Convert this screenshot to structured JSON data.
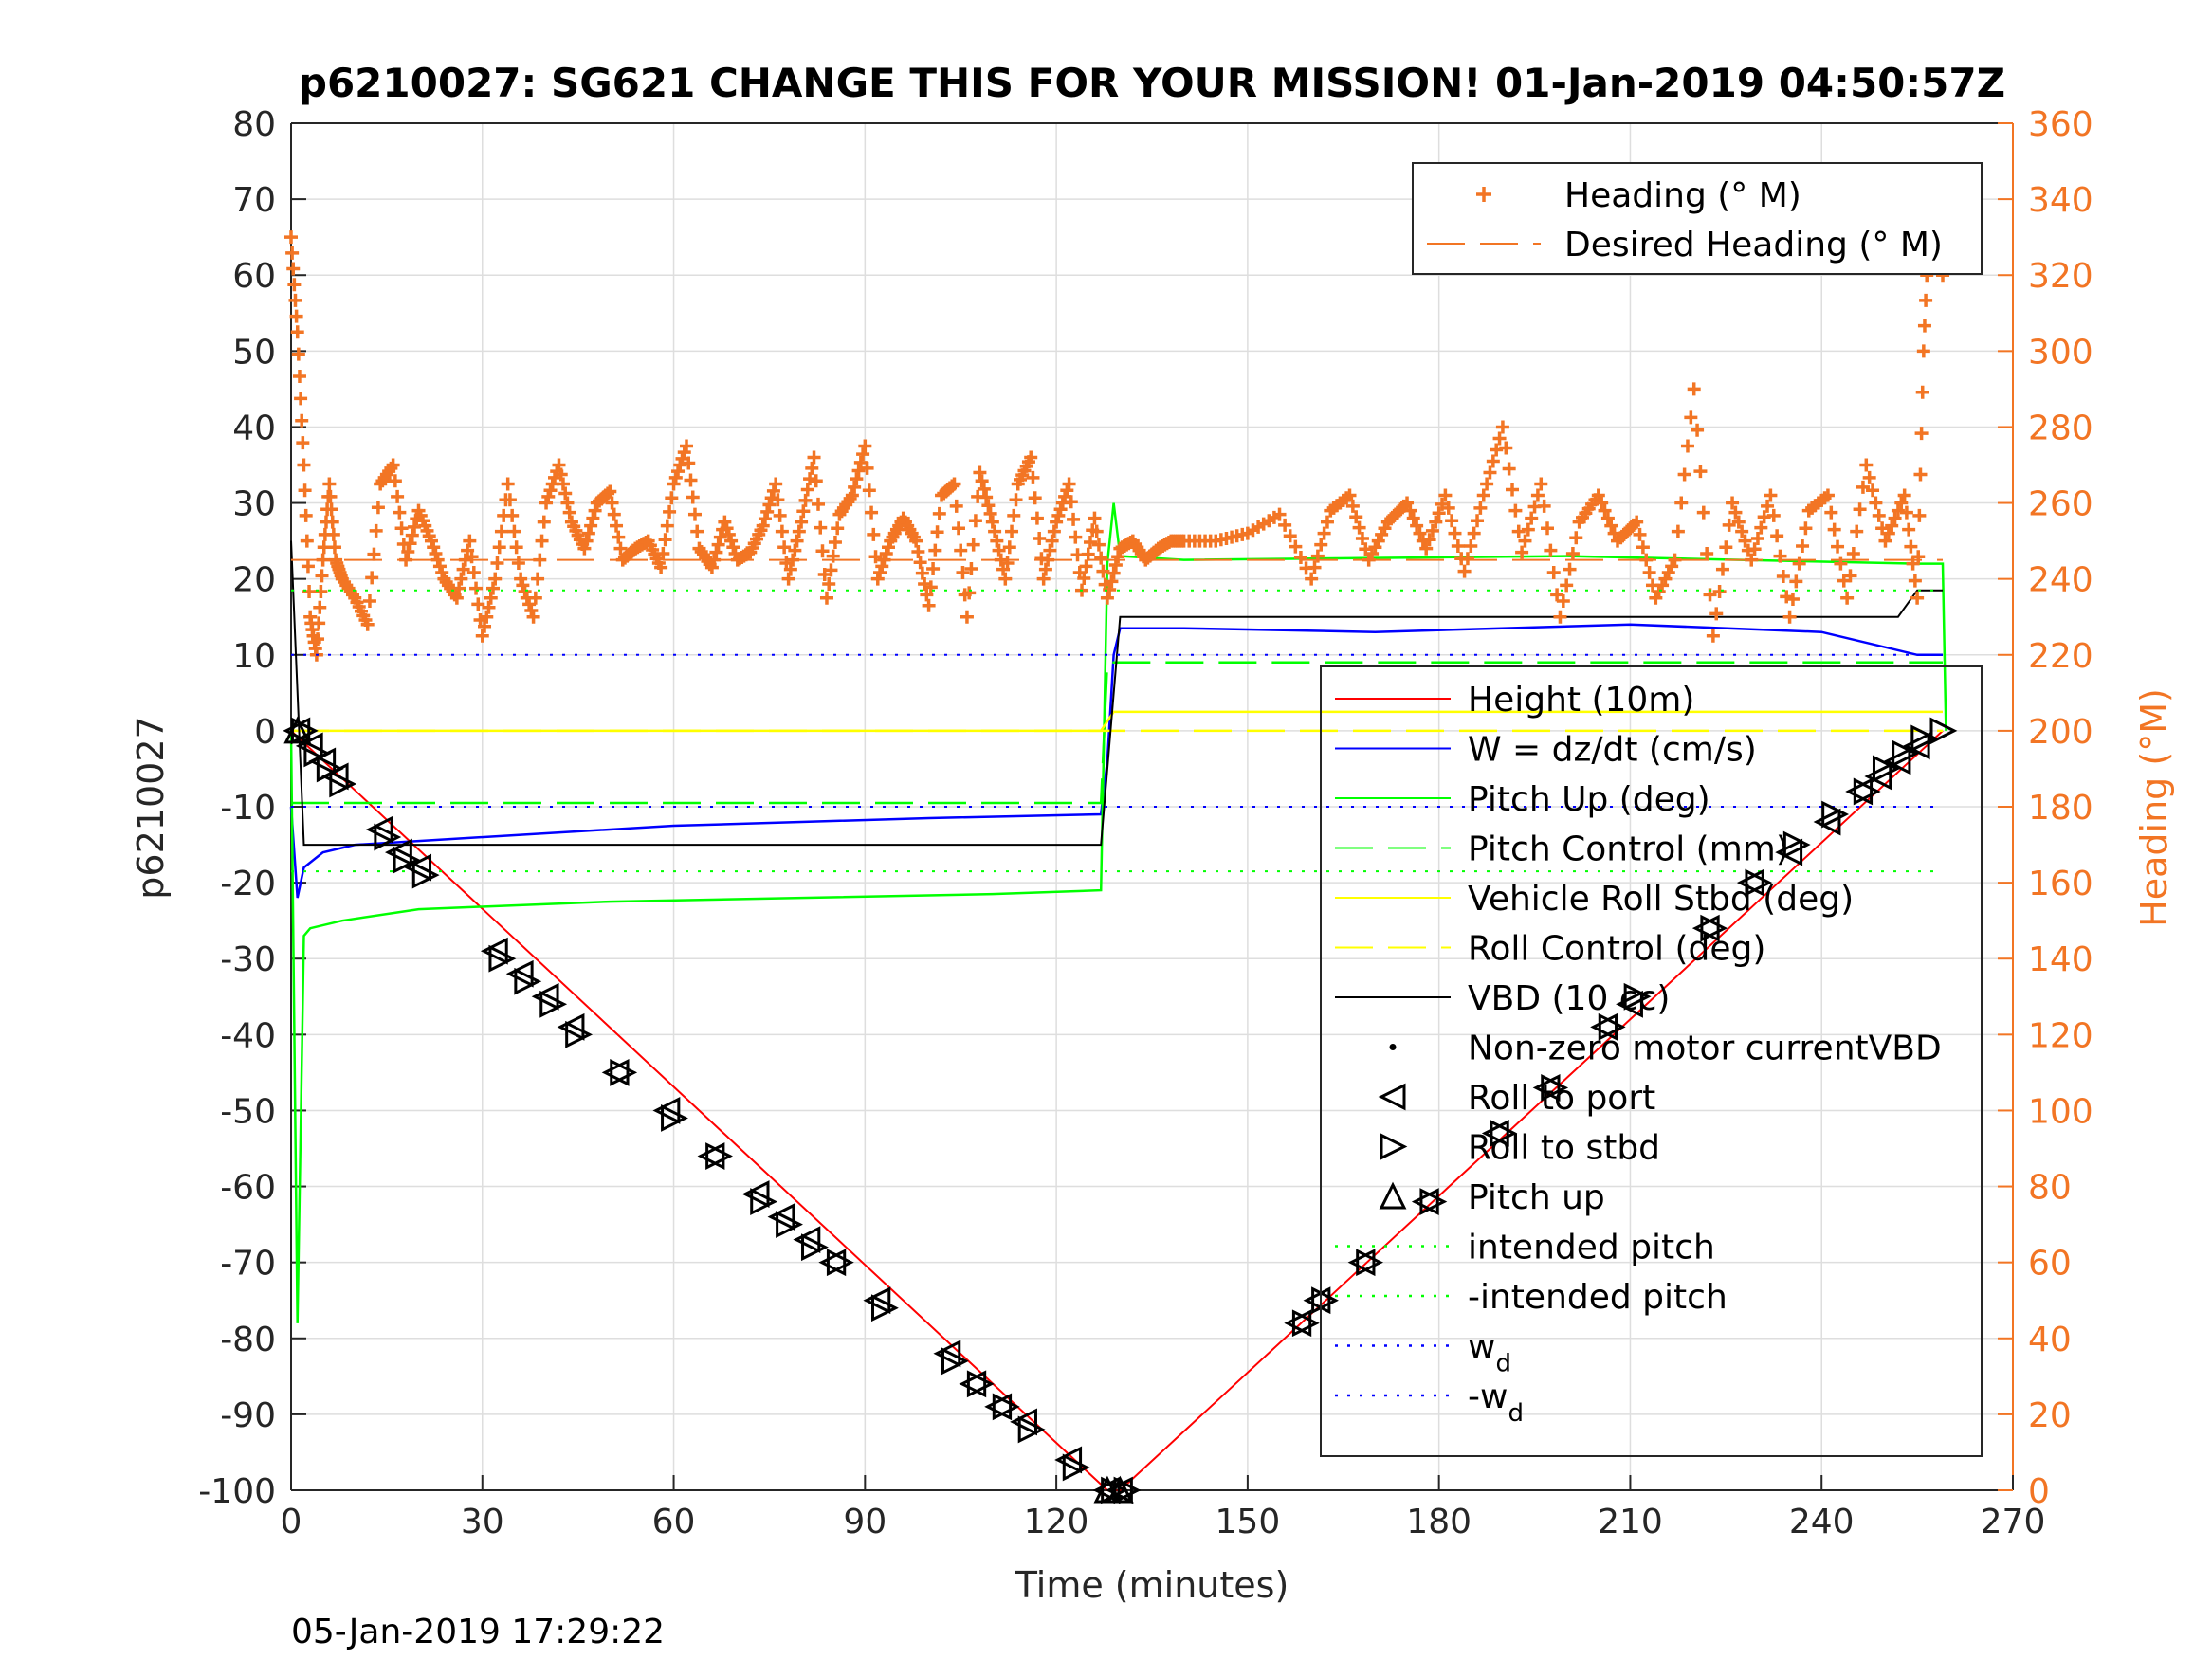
{
  "chart_data": {
    "type": "line",
    "title": "p6210027: SG621 CHANGE THIS FOR YOUR MISSION! 01-Jan-2019 04:50:57Z",
    "xlabel": "Time (minutes)",
    "ylabel": "p6210027",
    "y2label": "Heading (°M)",
    "footer": "05-Jan-2019 17:29:22",
    "xlim": [
      0,
      270
    ],
    "ylim": [
      -100,
      80
    ],
    "y2lim": [
      0,
      360
    ],
    "xticks": [
      "0",
      "30",
      "60",
      "90",
      "120",
      "150",
      "180",
      "210",
      "240",
      "270"
    ],
    "yticks": [
      "80",
      "70",
      "60",
      "50",
      "40",
      "30",
      "20",
      "10",
      "0",
      "-10",
      "-20",
      "-30",
      "-40",
      "-50",
      "-60",
      "-70",
      "-80",
      "-90",
      "-100"
    ],
    "y2ticks": [
      "360",
      "340",
      "320",
      "300",
      "280",
      "260",
      "240",
      "220",
      "200",
      "180",
      "160",
      "140",
      "120",
      "100",
      "80",
      "60",
      "40",
      "20",
      "0"
    ],
    "grid": true,
    "colors": {
      "height": "#ff0000",
      "w": "#0000ff",
      "pitch": "#00ff00",
      "roll": "#ffff00",
      "vbd": "#000000",
      "heading": "#f27524"
    },
    "legend_heading": {
      "placement": "top-right",
      "entries": [
        "Heading (° M)",
        "Desired Heading (° M)"
      ]
    },
    "legend_main": {
      "placement": "right",
      "entries": [
        {
          "label": "Height (10m)",
          "style": "line",
          "color": "#ff0000"
        },
        {
          "label": "W = dz/dt (cm/s)",
          "style": "line",
          "color": "#0000ff"
        },
        {
          "label": "Pitch Up (deg)",
          "style": "line",
          "color": "#00ff00"
        },
        {
          "label": "Pitch Control (mm)",
          "style": "dash",
          "color": "#00ff00"
        },
        {
          "label": "Vehicle Roll Stbd (deg)",
          "style": "line",
          "color": "#ffff00"
        },
        {
          "label": "Roll Control (deg)",
          "style": "dash",
          "color": "#ffff00"
        },
        {
          "label": "VBD (10 cc)",
          "style": "line",
          "color": "#000000"
        },
        {
          "label": "Non-zero motor currentVBD",
          "style": "dot",
          "color": "#000000"
        },
        {
          "label": "Roll to port",
          "style": "tri-left",
          "color": "#000000"
        },
        {
          "label": "Roll to stbd",
          "style": "tri-right",
          "color": "#000000"
        },
        {
          "label": "Pitch up",
          "style": "tri-up",
          "color": "#000000"
        },
        {
          "label": "intended pitch",
          "style": "dotted",
          "color": "#00ff00"
        },
        {
          "label": "-intended pitch",
          "style": "dotted",
          "color": "#00ff00"
        },
        {
          "label": "w",
          "sub": "d",
          "style": "dotted",
          "color": "#0000ff"
        },
        {
          "label": "-w",
          "sub": "d",
          "style": "dotted",
          "color": "#0000ff"
        }
      ]
    },
    "series": [
      {
        "name": "Height (10m)",
        "axis": "left",
        "x": [
          0,
          128,
          130,
          259
        ],
        "y": [
          0,
          -100,
          -100,
          0
        ]
      },
      {
        "name": "W = dz/dt (cm/s)",
        "axis": "left",
        "x": [
          0,
          1,
          2,
          5,
          10,
          20,
          40,
          60,
          80,
          100,
          127,
          128,
          129,
          130,
          140,
          170,
          210,
          240,
          255,
          259
        ],
        "y": [
          -10,
          -22,
          -18,
          -16,
          -15,
          -14.5,
          -13.5,
          -12.5,
          -12,
          -11.5,
          -11,
          -4,
          10,
          13.5,
          13.5,
          13,
          14,
          13,
          10,
          10
        ]
      },
      {
        "name": "Pitch Up (deg)",
        "axis": "left",
        "x": [
          0,
          1,
          2,
          3,
          8,
          20,
          50,
          80,
          110,
          127,
          128,
          129,
          130,
          140,
          200,
          255,
          259,
          259.5
        ],
        "y": [
          0,
          -78,
          -27,
          -26,
          -25,
          -23.5,
          -22.5,
          -22,
          -21.5,
          -21,
          22,
          30,
          23,
          22.5,
          23,
          22,
          22,
          0
        ]
      },
      {
        "name": "Pitch Control (mm)",
        "axis": "left",
        "x": [
          0,
          2,
          127,
          128,
          259
        ],
        "y": [
          -9.5,
          -9.5,
          -9.5,
          9,
          9
        ]
      },
      {
        "name": "Vehicle Roll Stbd (deg)",
        "axis": "left",
        "x": [
          0,
          3,
          127,
          129,
          259
        ],
        "y": [
          0,
          0,
          0,
          2.5,
          2.5
        ]
      },
      {
        "name": "Roll Control (deg)",
        "axis": "left",
        "x": [
          0,
          259
        ],
        "y": [
          0,
          0
        ]
      },
      {
        "name": "VBD (10 cc)",
        "axis": "left",
        "x": [
          0,
          2,
          127,
          130,
          252,
          255,
          259
        ],
        "y": [
          25,
          -15,
          -15,
          15,
          15,
          18.5,
          18.5
        ]
      },
      {
        "name": "Heading (° M)",
        "axis": "right",
        "x": [
          0,
          1,
          2,
          3,
          4,
          5,
          6,
          7,
          8,
          10,
          12,
          14,
          16,
          18,
          20,
          22,
          24,
          26,
          28,
          30,
          32,
          34,
          36,
          38,
          40,
          42,
          44,
          46,
          48,
          50,
          52,
          54,
          56,
          58,
          60,
          62,
          64,
          66,
          68,
          70,
          72,
          74,
          76,
          78,
          80,
          82,
          84,
          86,
          88,
          90,
          92,
          94,
          96,
          98,
          100,
          102,
          104,
          106,
          108,
          110,
          112,
          114,
          116,
          118,
          120,
          122,
          124,
          126,
          128,
          130,
          132,
          134,
          136,
          138,
          140,
          145,
          150,
          155,
          160,
          163,
          166,
          169,
          172,
          175,
          178,
          181,
          184,
          187,
          190,
          193,
          196,
          199,
          202,
          205,
          208,
          211,
          214,
          217,
          220,
          223,
          226,
          229,
          232,
          235,
          238,
          241,
          244,
          247,
          250,
          253,
          255,
          256,
          257,
          258,
          259
        ],
        "y": [
          330,
          305,
          270,
          230,
          220,
          245,
          265,
          245,
          240,
          235,
          228,
          265,
          270,
          245,
          258,
          250,
          240,
          235,
          250,
          225,
          240,
          265,
          240,
          230,
          260,
          270,
          255,
          248,
          260,
          263,
          245,
          248,
          250,
          243,
          265,
          275,
          248,
          243,
          255,
          245,
          247,
          254,
          265,
          240,
          255,
          272,
          235,
          257,
          262,
          275,
          240,
          250,
          256,
          250,
          233,
          262,
          265,
          230,
          268,
          255,
          240,
          265,
          272,
          240,
          255,
          265,
          237,
          256,
          235,
          248,
          250,
          245,
          248,
          250,
          250,
          250,
          252,
          257,
          240,
          258,
          262,
          245,
          255,
          260,
          248,
          262,
          242,
          262,
          280,
          247,
          265,
          230,
          255,
          262,
          250,
          255,
          235,
          245,
          290,
          225,
          260,
          245,
          262,
          230,
          258,
          262,
          235,
          270,
          250,
          262,
          235,
          300,
          340,
          340,
          320
        ]
      },
      {
        "name": "Desired Heading (° M)",
        "axis": "right",
        "x": [
          0,
          259
        ],
        "y": [
          245,
          245
        ]
      },
      {
        "name": "intended pitch",
        "axis": "left",
        "x": [
          0,
          259
        ],
        "y": [
          18.5,
          18.5
        ]
      },
      {
        "name": "-intended pitch",
        "axis": "left",
        "x": [
          0,
          259
        ],
        "y": [
          -18.5,
          -18.5
        ]
      },
      {
        "name": "w_d",
        "axis": "left",
        "x": [
          0,
          259
        ],
        "y": [
          10,
          10
        ]
      },
      {
        "name": "-w_d",
        "axis": "left",
        "x": [
          0,
          259
        ],
        "y": [
          -10,
          -10
        ]
      }
    ],
    "markers": {
      "roll_to_port": {
        "x": [
          1,
          3,
          5,
          7,
          14,
          17,
          20,
          32,
          36,
          40,
          44,
          51,
          59,
          66,
          73,
          77,
          81,
          85,
          92,
          103,
          107,
          111,
          115,
          122,
          128,
          130,
          158,
          161,
          168,
          178,
          189,
          197,
          206,
          210,
          222,
          229,
          235,
          241,
          246,
          249,
          252,
          255
        ],
        "y": [
          0,
          -2,
          -4,
          -6,
          -13,
          -16,
          -18,
          -29,
          -32,
          -35,
          -39,
          -45,
          -50,
          -56,
          -61,
          -64,
          -67,
          -70,
          -75,
          -82,
          -86,
          -89,
          -91,
          -96,
          -100,
          -100,
          -78,
          -75,
          -70,
          -62,
          -53,
          -47,
          -39,
          -36,
          -26,
          -20,
          -16,
          -12,
          -8,
          -6,
          -4,
          -2
        ]
      },
      "roll_to_stbd": {
        "x": [
          2,
          4,
          6,
          8,
          15,
          18,
          21,
          33,
          37,
          41,
          45,
          52,
          60,
          67,
          74,
          78,
          82,
          86,
          93,
          104,
          108,
          112,
          116,
          123,
          129,
          131,
          159,
          162,
          169,
          179,
          190,
          198,
          207,
          211,
          223,
          230,
          236,
          242,
          247,
          250,
          253,
          256,
          259
        ],
        "y": [
          0,
          -3,
          -5,
          -7,
          -14,
          -17,
          -19,
          -30,
          -33,
          -36,
          -40,
          -45,
          -51,
          -56,
          -62,
          -65,
          -68,
          -70,
          -76,
          -83,
          -86,
          -89,
          -92,
          -97,
          -100,
          -100,
          -78,
          -75,
          -70,
          -62,
          -53,
          -47,
          -39,
          -35,
          -26,
          -20,
          -15,
          -11,
          -8,
          -5,
          -3,
          -1,
          0
        ]
      },
      "pitch_up": {
        "x": [
          1,
          128,
          130
        ],
        "y": [
          0,
          -100,
          -100
        ]
      }
    }
  }
}
